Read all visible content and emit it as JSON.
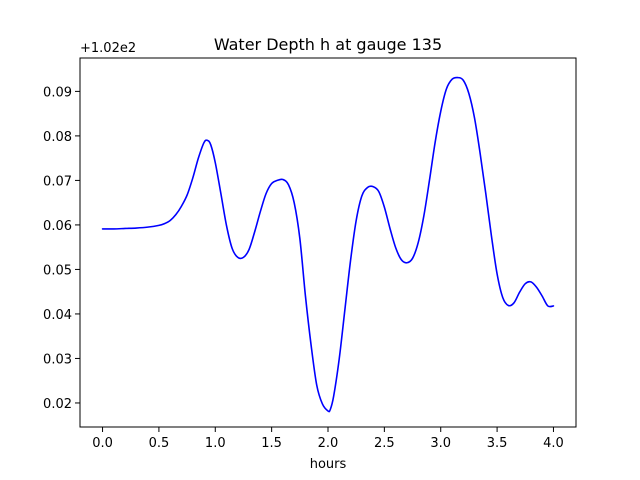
{
  "chart_data": {
    "type": "line",
    "title": "Water Depth h at gauge 135",
    "xlabel": "hours",
    "ylabel": "",
    "y_offset_label": "+1.02e2",
    "xlim": [
      -0.2,
      4.2
    ],
    "ylim": [
      0.0146,
      0.0975
    ],
    "x_ticks": [
      0.0,
      0.5,
      1.0,
      1.5,
      2.0,
      2.5,
      3.0,
      3.5,
      4.0
    ],
    "x_tick_labels": [
      "0.0",
      "0.5",
      "1.0",
      "1.5",
      "2.0",
      "2.5",
      "3.0",
      "3.5",
      "4.0"
    ],
    "y_ticks": [
      0.02,
      0.03,
      0.04,
      0.05,
      0.06,
      0.07,
      0.08,
      0.09
    ],
    "y_tick_labels": [
      "0.02",
      "0.03",
      "0.04",
      "0.05",
      "0.06",
      "0.07",
      "0.08",
      "0.09"
    ],
    "grid": false,
    "series": [
      {
        "color": "#0000ff",
        "x": [
          0.0,
          0.1,
          0.2,
          0.3,
          0.4,
          0.5,
          0.55,
          0.6,
          0.65,
          0.7,
          0.75,
          0.8,
          0.85,
          0.9,
          0.93,
          0.96,
          1.0,
          1.05,
          1.1,
          1.15,
          1.2,
          1.25,
          1.3,
          1.35,
          1.4,
          1.45,
          1.5,
          1.55,
          1.6,
          1.65,
          1.7,
          1.75,
          1.8,
          1.85,
          1.9,
          1.95,
          2.0,
          2.02,
          2.05,
          2.1,
          2.15,
          2.2,
          2.25,
          2.3,
          2.35,
          2.4,
          2.45,
          2.5,
          2.55,
          2.6,
          2.65,
          2.7,
          2.75,
          2.8,
          2.85,
          2.9,
          2.95,
          3.0,
          3.05,
          3.1,
          3.15,
          3.2,
          3.25,
          3.3,
          3.35,
          3.4,
          3.45,
          3.5,
          3.55,
          3.6,
          3.65,
          3.7,
          3.75,
          3.8,
          3.85,
          3.9,
          3.95,
          4.0
        ],
        "y": [
          0.0591,
          0.0591,
          0.0592,
          0.0593,
          0.0595,
          0.0599,
          0.0603,
          0.061,
          0.0623,
          0.0642,
          0.0667,
          0.0705,
          0.075,
          0.0785,
          0.079,
          0.078,
          0.074,
          0.067,
          0.0598,
          0.0547,
          0.0527,
          0.0527,
          0.0545,
          0.0585,
          0.063,
          0.067,
          0.0693,
          0.07,
          0.0702,
          0.069,
          0.065,
          0.057,
          0.044,
          0.033,
          0.024,
          0.0198,
          0.0182,
          0.0185,
          0.0215,
          0.03,
          0.041,
          0.052,
          0.061,
          0.0665,
          0.0684,
          0.0686,
          0.0675,
          0.064,
          0.0592,
          0.0549,
          0.0522,
          0.0515,
          0.0525,
          0.056,
          0.062,
          0.07,
          0.0785,
          0.0855,
          0.0905,
          0.0927,
          0.0931,
          0.0925,
          0.0895,
          0.084,
          0.076,
          0.067,
          0.0575,
          0.049,
          0.0437,
          0.0419,
          0.0425,
          0.0449,
          0.0468,
          0.0472,
          0.046,
          0.044,
          0.0418,
          0.0418
        ]
      }
    ]
  }
}
